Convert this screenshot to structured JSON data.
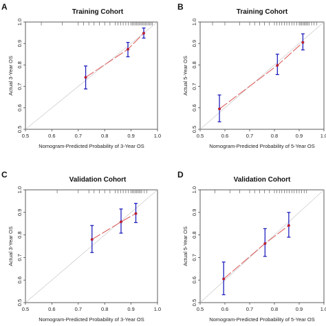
{
  "chart_data": [
    {
      "type": "scatter",
      "panel": "A",
      "title": "Training Cohort",
      "xlabel": "Nomogram-Predicted Probability of 3-Year OS",
      "ylabel": "Actual 3-Year OS",
      "xlim": [
        0.5,
        1.0
      ],
      "ylim": [
        0.5,
        1.0
      ],
      "xticks": [
        "0.5",
        "0.6",
        "0.7",
        "0.8",
        "0.9",
        "1.0"
      ],
      "yticks": [
        "0.5",
        "0.6",
        "0.7",
        "0.8",
        "0.9",
        "1.0"
      ],
      "points": [
        {
          "x": 0.728,
          "y": 0.742,
          "lo": 0.688,
          "hi": 0.795
        },
        {
          "x": 0.888,
          "y": 0.873,
          "lo": 0.838,
          "hi": 0.905
        },
        {
          "x": 0.948,
          "y": 0.948,
          "lo": 0.925,
          "hi": 0.972
        }
      ],
      "rug": [
        0.56,
        0.64,
        0.7,
        0.72,
        0.74,
        0.76,
        0.78,
        0.8,
        0.82,
        0.84,
        0.85,
        0.86,
        0.87,
        0.88,
        0.89,
        0.9,
        0.905,
        0.91,
        0.915,
        0.92,
        0.925,
        0.93,
        0.935,
        0.94,
        0.945,
        0.95,
        0.955,
        0.96,
        0.965,
        0.97,
        0.975,
        0.98
      ],
      "colors": {
        "point": "#cc2222",
        "errorbar": "#1f1fbf",
        "line": "#e06060",
        "reference": "#cccccc"
      }
    },
    {
      "type": "scatter",
      "panel": "B",
      "title": "Training Cohort",
      "xlabel": "Nomogram-Predicted Probability of 5-Year OS",
      "ylabel": "Actual 5-Year OS",
      "xlim": [
        0.5,
        1.0
      ],
      "ylim": [
        0.5,
        1.0
      ],
      "xticks": [
        "0.5",
        "0.6",
        "0.7",
        "0.8",
        "0.9",
        "1.0"
      ],
      "yticks": [
        "0.5",
        "0.6",
        "0.7",
        "0.8",
        "0.9",
        "1.0"
      ],
      "points": [
        {
          "x": 0.578,
          "y": 0.595,
          "lo": 0.535,
          "hi": 0.66
        },
        {
          "x": 0.812,
          "y": 0.798,
          "lo": 0.755,
          "hi": 0.85
        },
        {
          "x": 0.915,
          "y": 0.905,
          "lo": 0.87,
          "hi": 0.945
        }
      ],
      "rug": [
        0.55,
        0.6,
        0.66,
        0.7,
        0.72,
        0.74,
        0.76,
        0.78,
        0.8,
        0.81,
        0.82,
        0.83,
        0.84,
        0.85,
        0.86,
        0.87,
        0.88,
        0.89,
        0.9,
        0.905,
        0.91,
        0.915,
        0.92,
        0.925,
        0.93,
        0.935,
        0.94,
        0.95,
        0.96,
        0.97
      ],
      "colors": {
        "point": "#cc2222",
        "errorbar": "#1f1fbf",
        "line": "#e06060",
        "reference": "#cccccc"
      }
    },
    {
      "type": "scatter",
      "panel": "C",
      "title": "Validation Cohort",
      "xlabel": "Nomogram-Predicted Probability of 3-Year OS",
      "ylabel": "Actual 3-Year OS",
      "xlim": [
        0.5,
        1.0
      ],
      "ylim": [
        0.5,
        1.0
      ],
      "xticks": [
        "0.5",
        "0.6",
        "0.7",
        "0.8",
        "0.9",
        "1.0"
      ],
      "yticks": [
        "0.5",
        "0.6",
        "0.7",
        "0.8",
        "0.9",
        "1.0"
      ],
      "points": [
        {
          "x": 0.752,
          "y": 0.78,
          "lo": 0.722,
          "hi": 0.842
        },
        {
          "x": 0.862,
          "y": 0.858,
          "lo": 0.808,
          "hi": 0.915
        },
        {
          "x": 0.918,
          "y": 0.895,
          "lo": 0.855,
          "hi": 0.94
        }
      ],
      "rug": [
        0.62,
        0.7,
        0.74,
        0.76,
        0.78,
        0.8,
        0.82,
        0.84,
        0.85,
        0.86,
        0.87,
        0.88,
        0.89,
        0.9,
        0.905,
        0.91,
        0.915,
        0.92,
        0.925,
        0.93,
        0.935,
        0.94,
        0.95,
        0.96
      ],
      "colors": {
        "point": "#cc2222",
        "errorbar": "#1f1fbf",
        "line": "#e06060",
        "reference": "#cccccc"
      }
    },
    {
      "type": "scatter",
      "panel": "D",
      "title": "Validation Cohort",
      "xlabel": "Nomogram-Predicted Probability of 5-Year OS",
      "ylabel": "Actual 5-Year OS",
      "xlim": [
        0.5,
        1.0
      ],
      "ylim": [
        0.5,
        1.0
      ],
      "xticks": [
        "0.5",
        "0.6",
        "0.7",
        "0.8",
        "0.9",
        "1.0"
      ],
      "yticks": [
        "0.5",
        "0.6",
        "0.7",
        "0.8",
        "0.9",
        "1.0"
      ],
      "points": [
        {
          "x": 0.595,
          "y": 0.605,
          "lo": 0.535,
          "hi": 0.68
        },
        {
          "x": 0.762,
          "y": 0.762,
          "lo": 0.705,
          "hi": 0.828
        },
        {
          "x": 0.858,
          "y": 0.842,
          "lo": 0.79,
          "hi": 0.9
        }
      ],
      "rug": [
        0.56,
        0.62,
        0.66,
        0.7,
        0.72,
        0.74,
        0.76,
        0.78,
        0.8,
        0.81,
        0.82,
        0.83,
        0.84,
        0.85,
        0.86,
        0.87,
        0.88,
        0.89,
        0.9,
        0.91,
        0.92,
        0.93
      ],
      "colors": {
        "point": "#cc2222",
        "errorbar": "#1f1fbf",
        "line": "#e06060",
        "reference": "#cccccc"
      }
    }
  ]
}
